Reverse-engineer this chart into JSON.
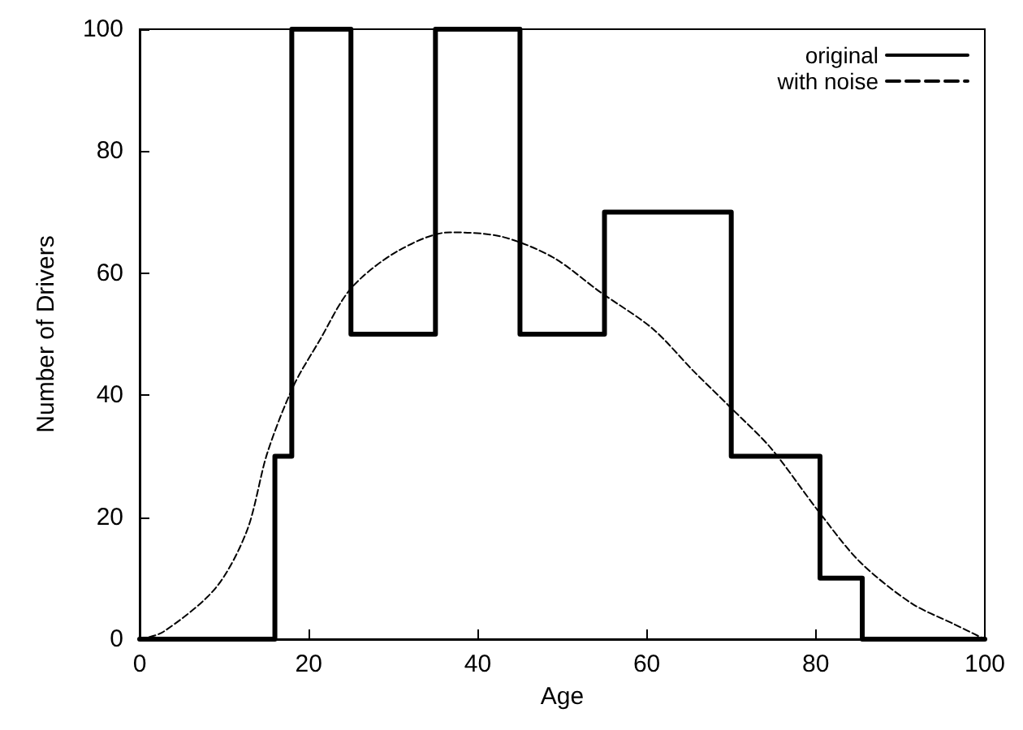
{
  "chart_data": {
    "type": "line",
    "xlabel": "Age",
    "ylabel": "Number of Drivers",
    "xlim": [
      0,
      100
    ],
    "xticks": [
      0,
      20,
      40,
      60,
      80,
      100
    ],
    "ylim": [
      0,
      100
    ],
    "yticks": [
      0,
      20,
      40,
      60,
      80,
      100
    ],
    "grid": false,
    "legend": "top right",
    "marker": "none",
    "series": [
      {
        "name": "original",
        "type": "step",
        "color": "#000000",
        "line_style": "solid",
        "x": [
          0,
          16,
          18,
          25,
          35,
          45,
          55,
          70,
          80.5,
          85.5,
          100
        ],
        "values": [
          0,
          30,
          100,
          50,
          100,
          50,
          70,
          30,
          10,
          0,
          0
        ]
      },
      {
        "name": "with noise",
        "color": "#000000",
        "line_style": "dashed",
        "x": [
          0,
          2.8,
          9,
          12.7,
          15.1,
          18.2,
          21.3,
          25,
          30.5,
          36.7,
          42.8,
          48.9,
          54.4,
          60.7,
          65.5,
          69.9,
          74.7,
          80.3,
          85.2,
          91.3,
          96.3,
          100
        ],
        "values": [
          0,
          1.2,
          8.4,
          17.8,
          30.5,
          41.5,
          49,
          57.5,
          63.6,
          66.7,
          66,
          62.6,
          57,
          50.9,
          44,
          38,
          31.3,
          21,
          12.7,
          5.9,
          2.5,
          0
        ]
      }
    ]
  }
}
